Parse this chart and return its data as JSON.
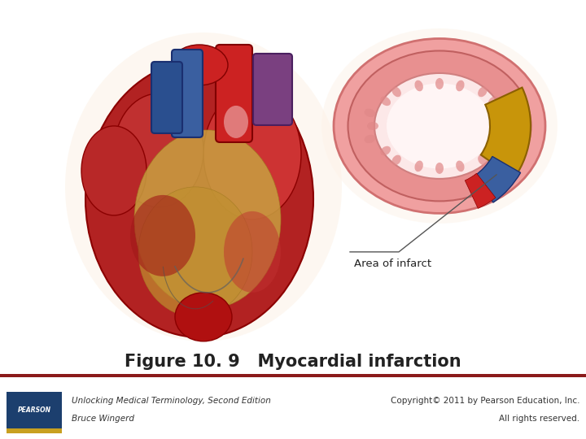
{
  "title": "Figure 10. 9   Myocardial infarction",
  "title_fontsize": 15,
  "caption_left_line1": "Unlocking Medical Terminology, Second Edition",
  "caption_left_line2": "Bruce Wingerd",
  "caption_right_line1": "Copyright© 2011 by Pearson Education, Inc.",
  "caption_right_line2": "All rights reserved.",
  "caption_fontsize": 7.5,
  "annotation_text": "Area of infarct",
  "annotation_fontsize": 9.5,
  "bg_color": "#ffffff",
  "separator_color": "#8B1A1A",
  "heart_main_color": "#b22222",
  "heart_dark_color": "#8b0000",
  "heart_mid_color": "#cd3333",
  "fat_color": "#c8a040",
  "fat_dark": "#a07820",
  "vessel_blue": "#3a5fa0",
  "vessel_red": "#cc2222",
  "vessel_purple": "#7a4080",
  "xsec_outer_color": "#f0a0a0",
  "xsec_mid_color": "#e88080",
  "xsec_inner_color": "#fce8e8",
  "xsec_core_color": "#fff5f5",
  "infarct_yellow": "#d4a020",
  "infarct_blue": "#3a5fa0",
  "line_color": "#555555",
  "pearson_blue": "#1c3f6e",
  "pearson_gold": "#c8a020",
  "text_color": "#222222",
  "footer_separator": "#7a1a1a"
}
